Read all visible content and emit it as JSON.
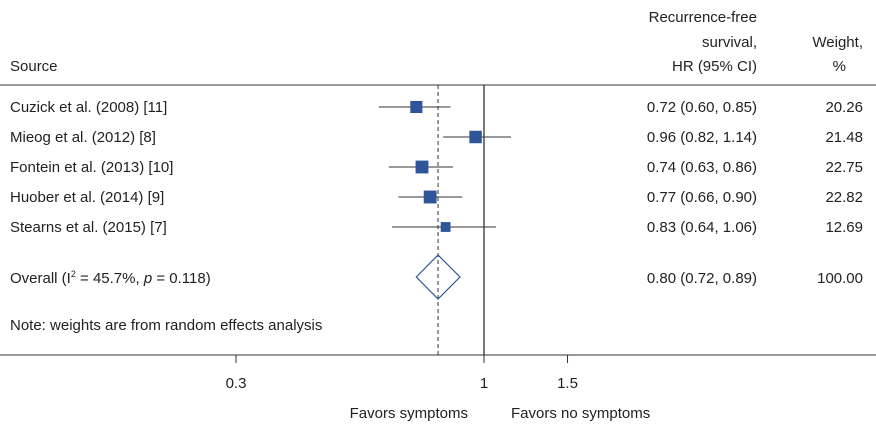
{
  "header": {
    "source_label": "Source",
    "hr_label_lines": [
      "Recurrence-free",
      "survival,",
      "HR (95% CI)"
    ],
    "weight_label_lines": [
      "Weight,",
      "%"
    ]
  },
  "chart_data": {
    "type": "forest",
    "x_scale": "log",
    "xlim": [
      0.2,
      2.5
    ],
    "x_ticks": [
      0.3,
      1,
      1.5
    ],
    "x_tick_labels": [
      "0.3",
      "1",
      "1.5"
    ],
    "null_line": 1,
    "left_direction_label": "Favors symptoms",
    "right_direction_label": "Favors no symptoms",
    "marker_color": "#2e5597",
    "studies": [
      {
        "source": "Cuzick et al. (2008) [11]",
        "hr": 0.72,
        "ci_low": 0.6,
        "ci_high": 0.85,
        "hr_text": "0.72 (0.60, 0.85)",
        "weight": 20.26,
        "weight_text": "20.26"
      },
      {
        "source": "Mieog et al. (2012) [8]",
        "hr": 0.96,
        "ci_low": 0.82,
        "ci_high": 1.14,
        "hr_text": "0.96 (0.82, 1.14)",
        "weight": 21.48,
        "weight_text": "21.48"
      },
      {
        "source": "Fontein et al. (2013) [10]",
        "hr": 0.74,
        "ci_low": 0.63,
        "ci_high": 0.86,
        "hr_text": "0.74 (0.63, 0.86)",
        "weight": 22.75,
        "weight_text": "22.75"
      },
      {
        "source": "Huober et al. (2014) [9]",
        "hr": 0.77,
        "ci_low": 0.66,
        "ci_high": 0.9,
        "hr_text": "0.77 (0.66, 0.90)",
        "weight": 22.82,
        "weight_text": "22.82"
      },
      {
        "source": "Stearns et al. (2015) [7]",
        "hr": 0.83,
        "ci_low": 0.64,
        "ci_high": 1.06,
        "hr_text": "0.83 (0.64, 1.06)",
        "weight": 12.69,
        "weight_text": "12.69"
      }
    ],
    "overall": {
      "label_prefix": "Overall (I",
      "i2_superscript": "2",
      "label_middle": " = 45.7%, ",
      "p_symbol": "p",
      "label_suffix": " = 0.118)",
      "hr": 0.8,
      "ci_low": 0.72,
      "ci_high": 0.89,
      "hr_text": "0.80 (0.72, 0.89)",
      "weight_text": "100.00"
    },
    "note": "Note: weights are from random effects analysis"
  }
}
